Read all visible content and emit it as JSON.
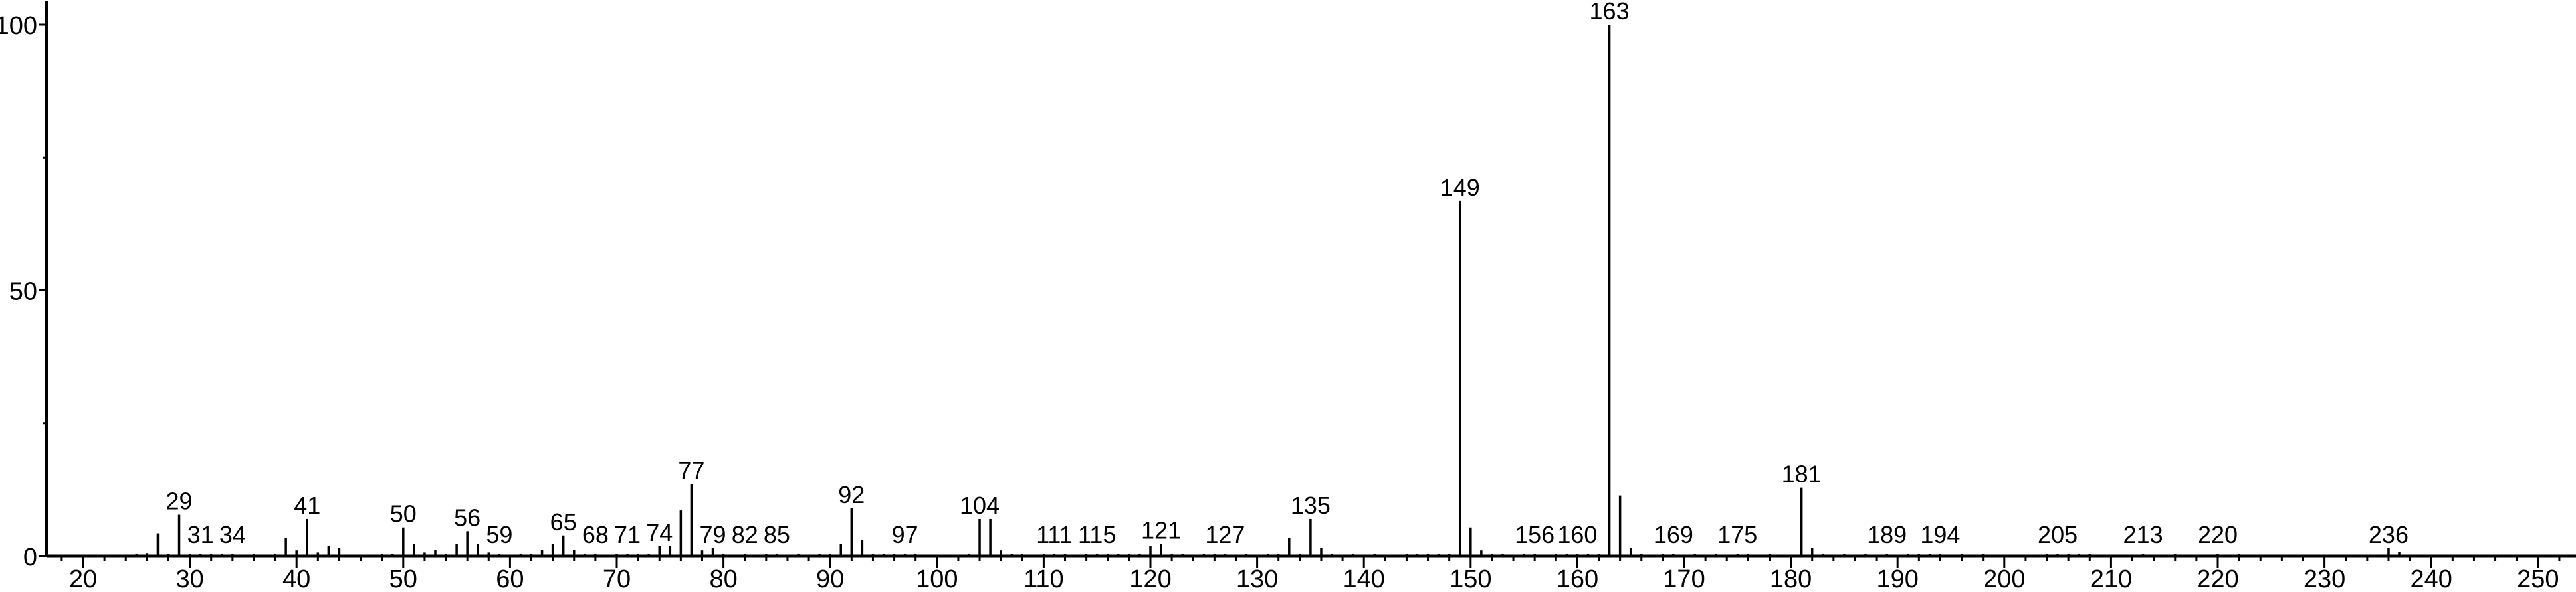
{
  "chart_data": {
    "type": "bar",
    "title": "",
    "xlabel": "",
    "ylabel": "",
    "xlim": [
      16,
      253
    ],
    "ylim": [
      0,
      100
    ],
    "grid": false,
    "x_ticks": [
      20,
      30,
      40,
      50,
      60,
      70,
      80,
      90,
      100,
      110,
      120,
      130,
      140,
      150,
      160,
      170,
      180,
      190,
      200,
      210,
      220,
      230,
      240,
      250
    ],
    "y_ticks": [
      0,
      50,
      100
    ],
    "y_minor_ticks": [
      25,
      75
    ],
    "bar_color": "#000000",
    "peaks": [
      [
        25,
        0.5
      ],
      [
        26,
        0.6
      ],
      [
        27,
        4.3
      ],
      [
        28,
        0.5
      ],
      [
        29,
        7.8
      ],
      [
        30,
        0.5
      ],
      [
        31,
        0.5
      ],
      [
        32,
        0.4
      ],
      [
        33,
        0.5
      ],
      [
        34,
        0.5
      ],
      [
        36,
        0.5
      ],
      [
        38,
        0.5
      ],
      [
        39,
        3.5
      ],
      [
        40,
        1.1
      ],
      [
        41,
        7.0
      ],
      [
        42,
        0.7
      ],
      [
        43,
        2.0
      ],
      [
        44,
        1.5
      ],
      [
        48,
        0.5
      ],
      [
        49,
        0.5
      ],
      [
        50,
        5.4
      ],
      [
        51,
        2.3
      ],
      [
        52,
        0.7
      ],
      [
        53,
        1.2
      ],
      [
        54,
        0.5
      ],
      [
        55,
        2.3
      ],
      [
        56,
        4.7
      ],
      [
        57,
        2.3
      ],
      [
        58,
        0.7
      ],
      [
        59,
        0.5
      ],
      [
        61,
        0.5
      ],
      [
        62,
        0.5
      ],
      [
        63,
        1.2
      ],
      [
        64,
        2.3
      ],
      [
        65,
        3.9
      ],
      [
        66,
        1.2
      ],
      [
        67,
        0.5
      ],
      [
        68,
        0.5
      ],
      [
        70,
        0.5
      ],
      [
        71,
        0.5
      ],
      [
        72,
        0.5
      ],
      [
        73,
        0.5
      ],
      [
        74,
        1.9
      ],
      [
        75,
        1.9
      ],
      [
        76,
        8.6
      ],
      [
        77,
        13.6
      ],
      [
        78,
        1.1
      ],
      [
        79,
        1.5
      ],
      [
        80,
        0.5
      ],
      [
        82,
        0.5
      ],
      [
        84,
        0.5
      ],
      [
        85,
        0.5
      ],
      [
        87,
        0.5
      ],
      [
        89,
        0.5
      ],
      [
        90,
        0.5
      ],
      [
        91,
        2.3
      ],
      [
        92,
        9.0
      ],
      [
        93,
        3.0
      ],
      [
        94,
        0.5
      ],
      [
        95,
        0.5
      ],
      [
        96,
        0.5
      ],
      [
        97,
        0.5
      ],
      [
        98,
        0.5
      ],
      [
        103,
        0.5
      ],
      [
        104,
        7.0
      ],
      [
        105,
        7.0
      ],
      [
        106,
        1.1
      ],
      [
        107,
        0.5
      ],
      [
        108,
        0.5
      ],
      [
        110,
        0.5
      ],
      [
        111,
        0.5
      ],
      [
        112,
        0.5
      ],
      [
        114,
        0.5
      ],
      [
        115,
        0.5
      ],
      [
        116,
        0.5
      ],
      [
        117,
        0.5
      ],
      [
        118,
        0.5
      ],
      [
        119,
        0.5
      ],
      [
        120,
        1.9
      ],
      [
        121,
        2.3
      ],
      [
        122,
        0.5
      ],
      [
        123,
        0.5
      ],
      [
        125,
        0.5
      ],
      [
        126,
        0.5
      ],
      [
        127,
        0.5
      ],
      [
        129,
        0.5
      ],
      [
        131,
        0.5
      ],
      [
        132,
        0.5
      ],
      [
        133,
        3.5
      ],
      [
        134,
        0.5
      ],
      [
        135,
        7.0
      ],
      [
        136,
        1.5
      ],
      [
        137,
        0.5
      ],
      [
        139,
        0.5
      ],
      [
        141,
        0.5
      ],
      [
        144,
        0.5
      ],
      [
        145,
        0.5
      ],
      [
        146,
        0.5
      ],
      [
        147,
        0.5
      ],
      [
        148,
        0.5
      ],
      [
        149,
        66.8
      ],
      [
        150,
        5.4
      ],
      [
        151,
        1.1
      ],
      [
        152,
        0.5
      ],
      [
        153,
        0.5
      ],
      [
        155,
        0.5
      ],
      [
        156,
        0.5
      ],
      [
        158,
        0.5
      ],
      [
        159,
        0.5
      ],
      [
        160,
        0.5
      ],
      [
        161,
        0.5
      ],
      [
        162,
        0.5
      ],
      [
        163,
        100
      ],
      [
        164,
        11.4
      ],
      [
        165,
        1.5
      ],
      [
        166,
        0.5
      ],
      [
        168,
        0.5
      ],
      [
        169,
        0.5
      ],
      [
        171,
        0.5
      ],
      [
        173,
        0.5
      ],
      [
        175,
        0.5
      ],
      [
        176,
        0.5
      ],
      [
        178,
        0.5
      ],
      [
        181,
        12.9
      ],
      [
        182,
        1.5
      ],
      [
        183,
        0.5
      ],
      [
        185,
        0.5
      ],
      [
        187,
        0.5
      ],
      [
        189,
        0.5
      ],
      [
        191,
        0.5
      ],
      [
        192,
        0.5
      ],
      [
        193,
        0.5
      ],
      [
        194,
        0.5
      ],
      [
        196,
        0.5
      ],
      [
        198,
        0.5
      ],
      [
        204,
        0.5
      ],
      [
        205,
        0.5
      ],
      [
        206,
        0.5
      ],
      [
        207,
        0.5
      ],
      [
        208,
        0.5
      ],
      [
        213,
        0.5
      ],
      [
        216,
        0.5
      ],
      [
        220,
        0.5
      ],
      [
        222,
        0.5
      ],
      [
        236,
        1.5
      ],
      [
        237,
        0.8
      ]
    ],
    "labeled_peaks": [
      29,
      31,
      34,
      41,
      50,
      56,
      59,
      65,
      68,
      71,
      74,
      77,
      79,
      82,
      85,
      92,
      97,
      104,
      111,
      115,
      121,
      127,
      135,
      149,
      156,
      160,
      163,
      169,
      175,
      181,
      189,
      194,
      205,
      213,
      220,
      236
    ]
  }
}
